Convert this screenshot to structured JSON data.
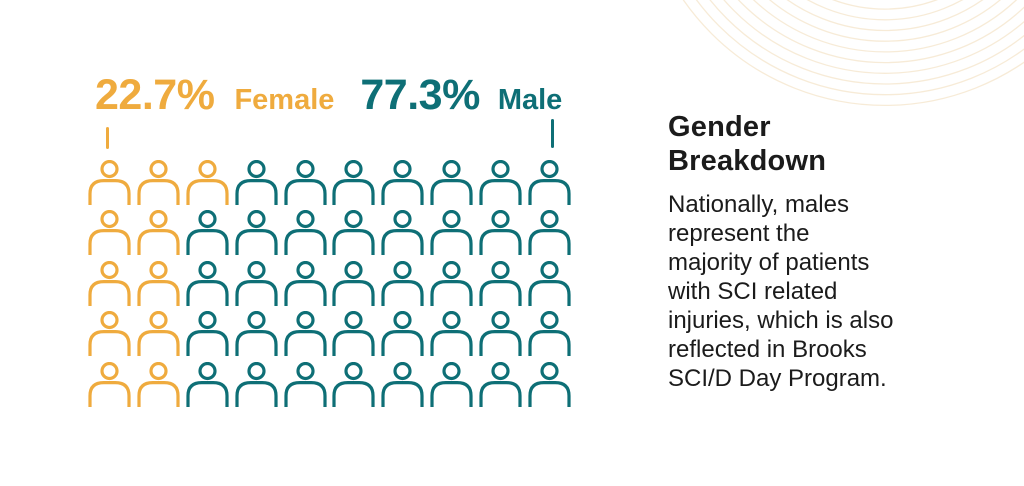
{
  "stats": {
    "female": {
      "value": "22.7%",
      "label": "Female"
    },
    "male": {
      "value": "77.3%",
      "label": "Male"
    }
  },
  "chart_data": {
    "type": "pictogram",
    "title": "Gender Breakdown",
    "categories": [
      "Female",
      "Male"
    ],
    "values": [
      22.7,
      77.3
    ],
    "units": "percent",
    "icon": "person",
    "legend_position": "top",
    "grid": {
      "rows": 5,
      "cols": 10,
      "total_icons": 50,
      "female_icons": 11,
      "male_icons": 39,
      "female_per_row": [
        3,
        2,
        2,
        2,
        2
      ]
    },
    "colors": {
      "female": "#EFAB3E",
      "male": "#0E6F76"
    }
  },
  "panel": {
    "title": "Gender\nBreakdown",
    "body": "Nationally, males\nrepresent the\nmajority of patients\nwith SCI related\ninjuries, which is also\nreflected in Brooks\nSCI/D Day Program."
  },
  "decor": {
    "rings_color": "#F3E0C2"
  }
}
